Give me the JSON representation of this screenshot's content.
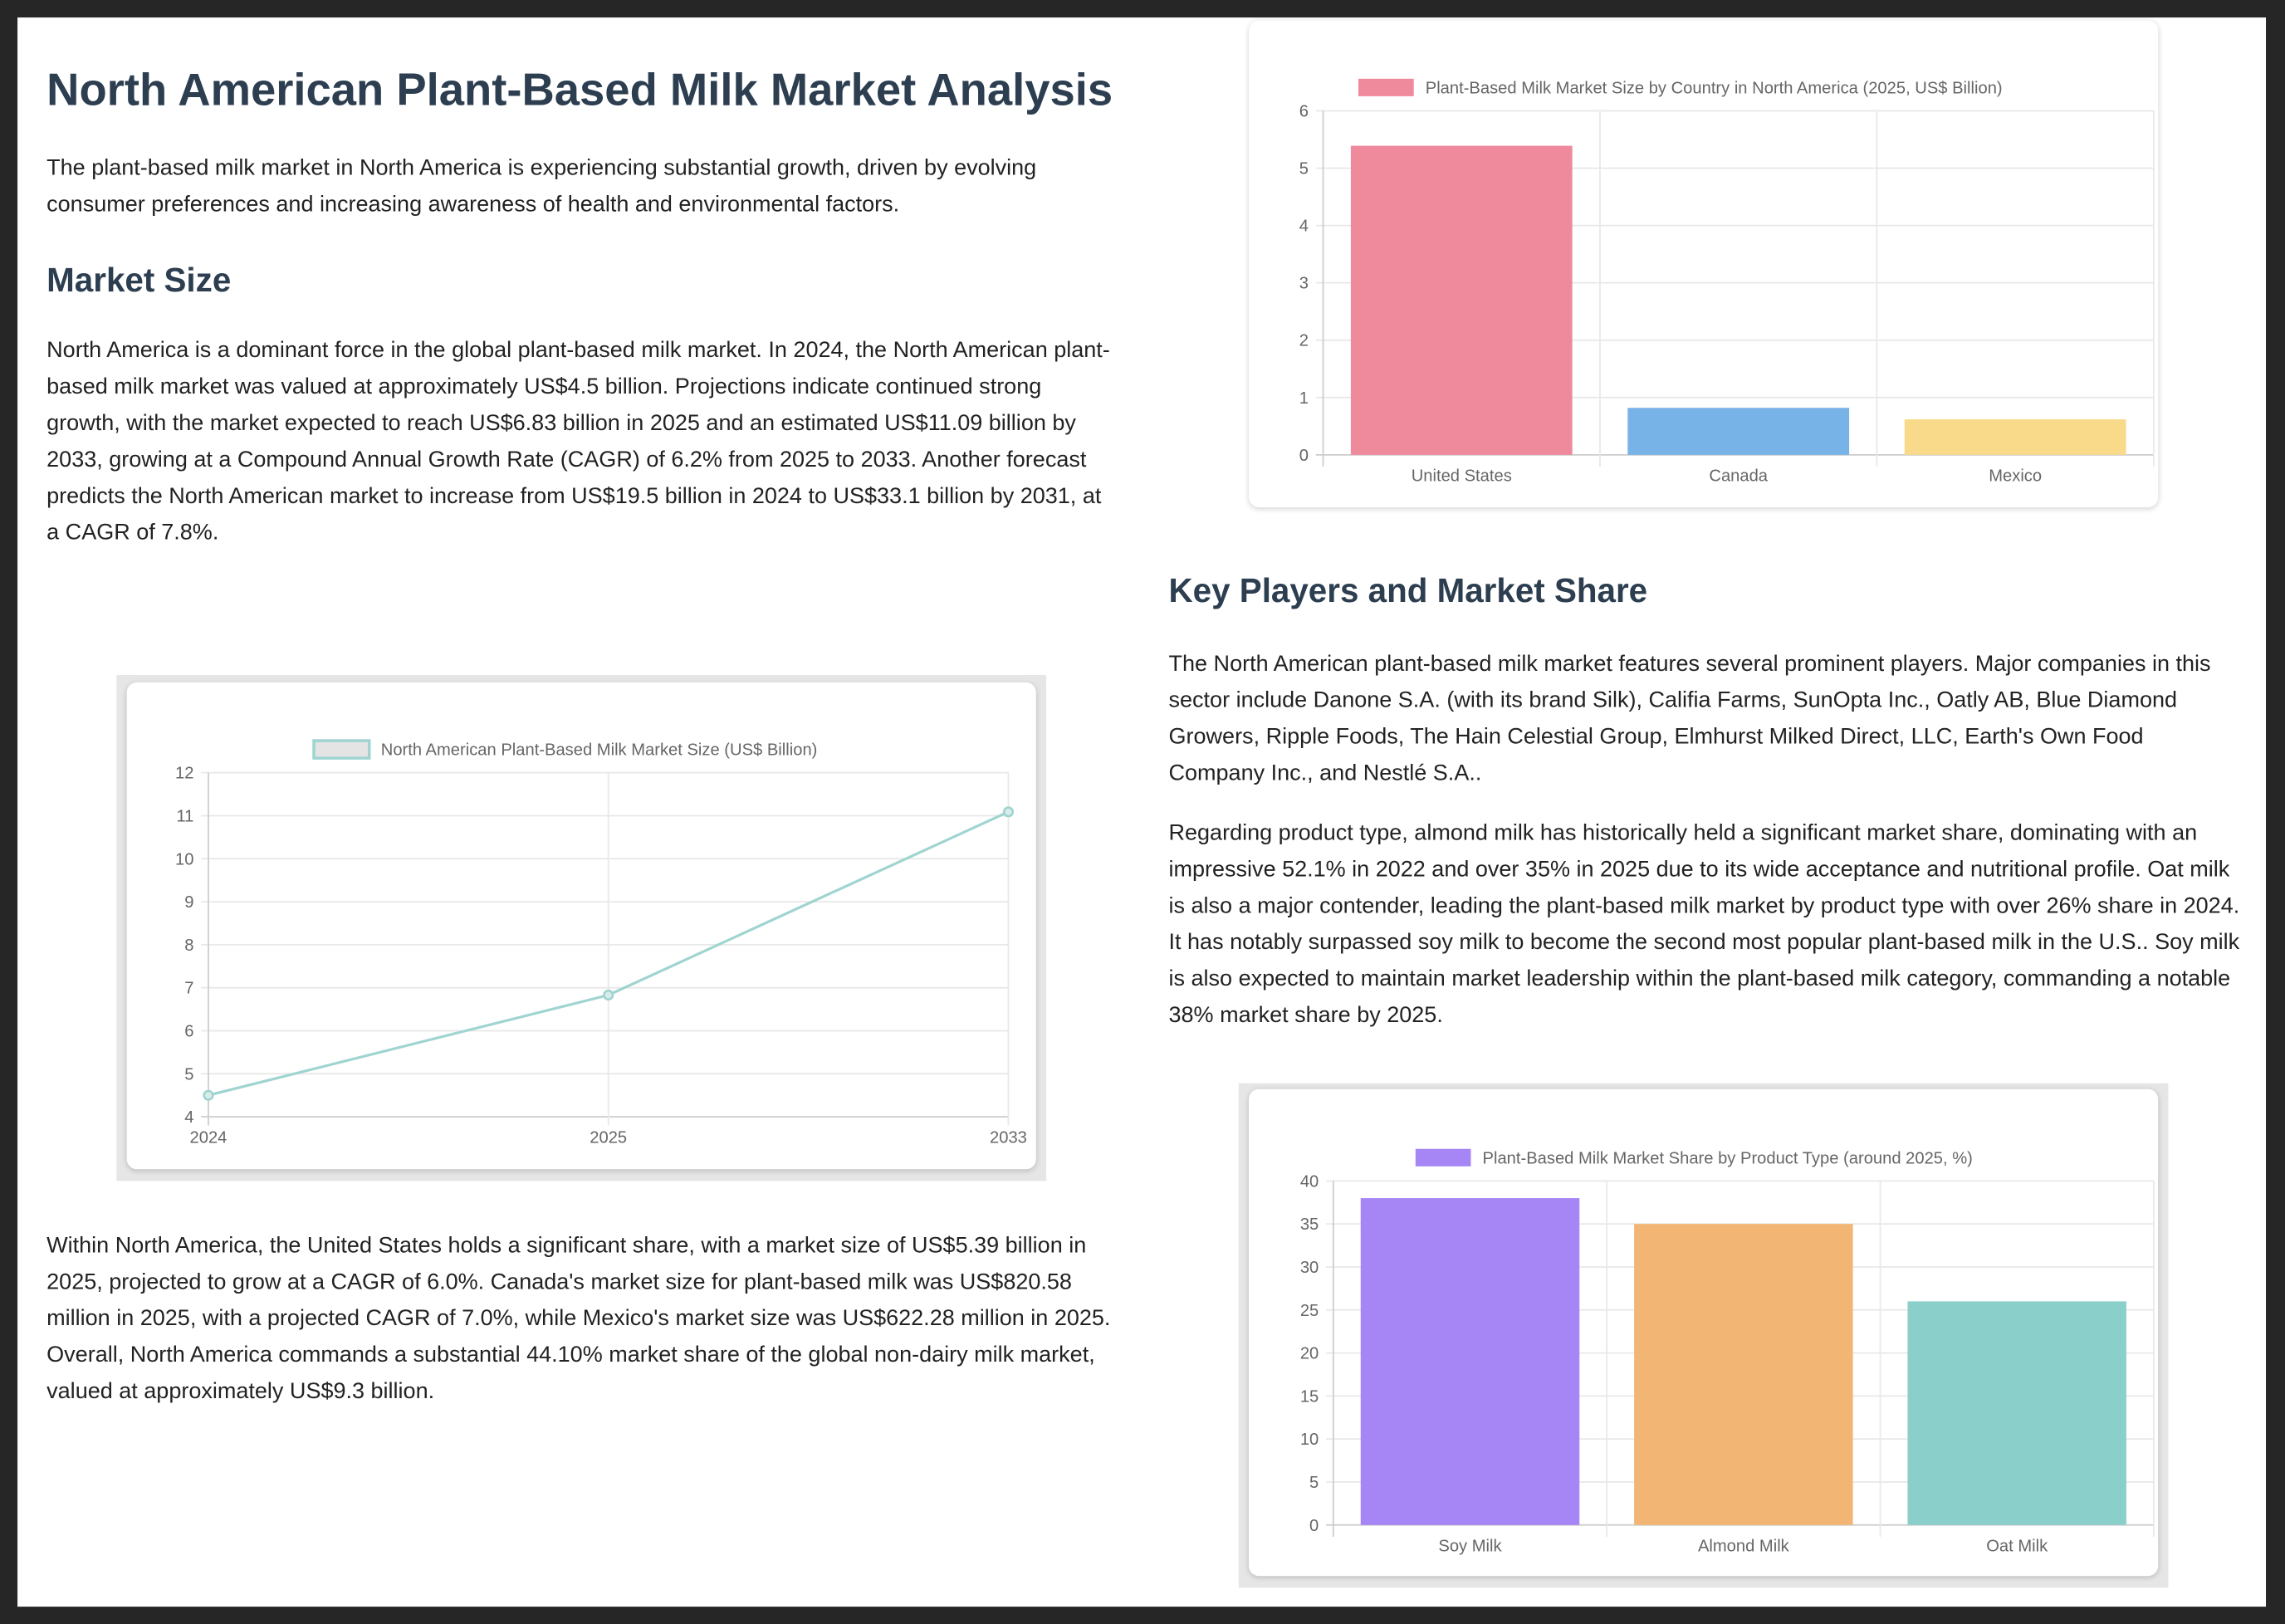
{
  "title": "North American Plant-Based Milk Market Analysis",
  "intro": "The plant-based milk market in North America is experiencing substantial growth, driven by evolving consumer preferences and increasing awareness of health and environmental factors.",
  "market_size": {
    "heading": "Market Size",
    "p1": "North America is a dominant force in the global plant-based milk market. In 2024, the North American plant-based milk market was valued at approximately US$4.5 billion. Projections indicate continued strong growth, with the market expected to reach US$6.83 billion in 2025 and an estimated US$11.09 billion by 2033, growing at a Compound Annual Growth Rate (CAGR) of 6.2% from 2025 to 2033. Another forecast predicts the North American market to increase from US$19.5 billion in 2024 to US$33.1 billion by 2031, at a CAGR of 7.8%.",
    "p2": "Within North America, the United States holds a significant share, with a market size of US$5.39 billion in 2025, projected to grow at a CAGR of 6.0%. Canada's market size for plant-based milk was US$820.58 million in 2025, with a projected CAGR of 7.0%, while Mexico's market size was US$622.28 million in 2025. Overall, North America commands a substantial 44.10% market share of the global non-dairy milk market, valued at approximately US$9.3 billion."
  },
  "key_players": {
    "heading": "Key Players and Market Share",
    "p1": "The North American plant-based milk market features several prominent players. Major companies in this sector include Danone S.A. (with its brand Silk), Califia Farms, SunOpta Inc., Oatly AB, Blue Diamond Growers, Ripple Foods, The Hain Celestial Group, Elmhurst Milked Direct, LLC, Earth's Own Food Company Inc., and Nestlé S.A..",
    "p2": "Regarding product type, almond milk has historically held a significant market share, dominating with an impressive 52.1% in 2022 and over 35% in 2025 due to its wide acceptance and nutritional profile. Oat milk is also a major contender, leading the plant-based milk market by product type with over 26% share in 2024. It has notably surpassed soy milk to become the second most popular plant-based milk in the U.S.. Soy milk is also expected to maintain market leadership within the plant-based milk category, commanding a notable 38% market share by 2025."
  },
  "chart_data": [
    {
      "id": "line",
      "type": "line",
      "legend": "North American Plant-Based Milk Market Size (US$ Billion)",
      "categories": [
        "2024",
        "2025",
        "2033"
      ],
      "values": [
        4.5,
        6.83,
        11.09
      ],
      "ylim": [
        4,
        12
      ],
      "yticks": [
        4,
        5,
        6,
        7,
        8,
        9,
        10,
        11,
        12
      ],
      "grid": true,
      "legend_position": "top",
      "color": "#9fd4d0",
      "legend_fill": "#e4e4e4"
    },
    {
      "id": "country",
      "type": "bar",
      "legend": "Plant-Based Milk Market Size by Country in North America (2025, US$ Billion)",
      "categories": [
        "United States",
        "Canada",
        "Mexico"
      ],
      "values": [
        5.39,
        0.82,
        0.62
      ],
      "ylim": [
        0,
        6
      ],
      "yticks": [
        0,
        1,
        2,
        3,
        4,
        5,
        6
      ],
      "grid": true,
      "legend_position": "top",
      "colors": [
        "#ef8a9d",
        "#78b3e7",
        "#f8da8a"
      ]
    },
    {
      "id": "product",
      "type": "bar",
      "legend": "Plant-Based Milk Market Share by Product Type (around 2025, %)",
      "categories": [
        "Soy Milk",
        "Almond Milk",
        "Oat Milk"
      ],
      "values": [
        38,
        35,
        26
      ],
      "ylim": [
        0,
        40
      ],
      "yticks": [
        0,
        5,
        10,
        15,
        20,
        25,
        30,
        35,
        40
      ],
      "grid": true,
      "legend_position": "top",
      "colors": [
        "#a685f5",
        "#f3b574",
        "#8bcfcb"
      ]
    }
  ]
}
